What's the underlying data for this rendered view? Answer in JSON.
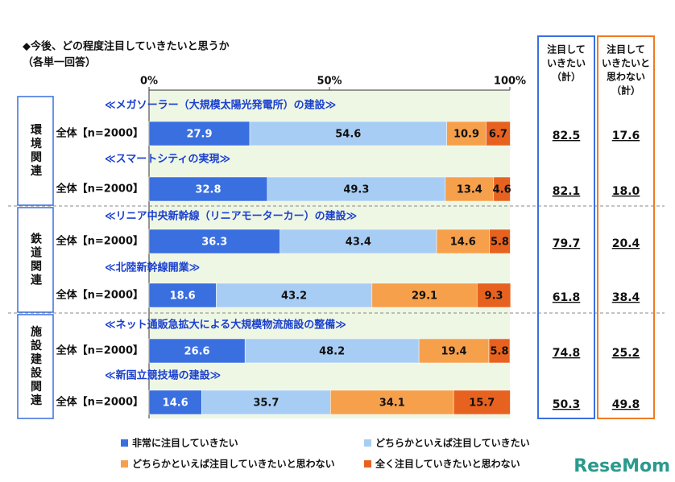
{
  "chart_data": {
    "type": "bar",
    "orientation": "horizontal",
    "stacked": true,
    "title": "◆今後、どの程度注目していきたいと思うか",
    "subtitle": "（各単一回答）",
    "xlim": [
      0,
      100
    ],
    "xticks": [
      {
        "value": 0,
        "label": "0%"
      },
      {
        "value": 50,
        "label": "50%"
      },
      {
        "value": 100,
        "label": "100%"
      }
    ],
    "groups": [
      {
        "label": "環境関連",
        "items": [
          {
            "title": "≪メガソーラー（大規模太陽光発電所）の建設≫",
            "label": "全体【n=2000】"
          },
          {
            "title": "≪スマートシティの実現≫",
            "label": "全体【n=2000】"
          }
        ]
      },
      {
        "label": "鉄道関連",
        "items": [
          {
            "title": "≪リニア中央新幹線（リニアモーターカー）の建設≫",
            "label": "全体【n=2000】"
          },
          {
            "title": "≪北陸新幹線開業≫",
            "label": "全体【n=2000】"
          }
        ]
      },
      {
        "label": "施設建設関連",
        "items": [
          {
            "title": "≪ネット通販急拡大による大規模物流施設の整備≫",
            "label": "全体【n=2000】"
          },
          {
            "title": "≪新国立競技場の建設≫",
            "label": "全体【n=2000】"
          }
        ]
      }
    ],
    "series": [
      {
        "name": "非常に注目していきたい",
        "color": "#3a6fe0",
        "values": [
          27.9,
          32.8,
          36.3,
          18.6,
          26.6,
          14.6
        ]
      },
      {
        "name": "どちらかといえば注目していきたい",
        "color": "#a8cdf4",
        "values": [
          54.6,
          49.3,
          43.4,
          43.2,
          48.2,
          35.7
        ]
      },
      {
        "name": "どちらかといえば注目していきたいと思わない",
        "color": "#f6a04c",
        "values": [
          10.9,
          13.4,
          14.6,
          29.1,
          19.4,
          34.1
        ]
      },
      {
        "name": "全く注目していきたいと思わない",
        "color": "#e8621f",
        "values": [
          6.7,
          4.6,
          5.8,
          9.3,
          5.8,
          15.7
        ]
      }
    ],
    "summary": [
      {
        "header": [
          "注目して",
          "いきたい",
          "（計）"
        ],
        "color": "#3a6fe0",
        "values": [
          82.5,
          82.1,
          79.7,
          61.8,
          74.8,
          50.3
        ]
      },
      {
        "header": [
          "注目して",
          "いきたいと",
          "思わない",
          "（計）"
        ],
        "color": "#f07a22",
        "values": [
          17.6,
          18,
          20.4,
          38.4,
          25.2,
          49.8
        ],
        "value_labels": [
          "17.6",
          "18.0",
          "20.4",
          "38.4",
          "25.2",
          "49.8"
        ]
      }
    ],
    "watermark": "ReseMom"
  }
}
